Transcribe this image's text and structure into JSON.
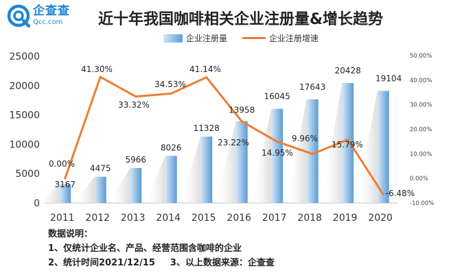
{
  "logo": {
    "cn": "企查查",
    "en": "Qcc.com"
  },
  "title": "近十年我国咖啡相关企业注册量&增长趋势",
  "legend": {
    "bar": "企业注册量",
    "line": "企业注册增速"
  },
  "chart_data": {
    "type": "bar",
    "title": "近十年我国咖啡相关企业注册量&增长趋势",
    "categories": [
      "2011",
      "2012",
      "2013",
      "2014",
      "2015",
      "2016",
      "2017",
      "2018",
      "2019",
      "2020"
    ],
    "series": [
      {
        "name": "企业注册量",
        "type": "bar",
        "axis": "left",
        "values": [
          3167,
          4475,
          5966,
          8026,
          11328,
          13958,
          16045,
          17643,
          20428,
          19104
        ]
      },
      {
        "name": "企业注册增速",
        "type": "line",
        "axis": "right",
        "values": [
          0.0,
          41.3,
          33.32,
          34.53,
          41.14,
          23.22,
          14.95,
          9.96,
          15.79,
          -6.48
        ],
        "labels": [
          "0.00%",
          "41.30%",
          "33.32%",
          "34.53%",
          "41.14%",
          "23.22%",
          "14.95%",
          "9.96%",
          "15.79%",
          "-6.48%"
        ]
      }
    ],
    "left_axis": {
      "range": [
        0,
        25000
      ],
      "ticks": [
        "0",
        "5000",
        "10000",
        "15000",
        "20000",
        "25000"
      ]
    },
    "right_axis": {
      "range": [
        -10,
        50
      ],
      "ticks": [
        "-10.00%",
        "0.00%",
        "10.00%",
        "20.00%",
        "30.00%",
        "40.00%",
        "50.00%"
      ]
    },
    "colors": {
      "bar_light": "#d6e7f7",
      "bar_dark": "#5b9bd5",
      "line": "#ed7d31"
    }
  },
  "notes": {
    "heading": "数据说明：",
    "line1": "1、仅统计企业名、产品、经营范围含咖啡的企业",
    "line2a": "2、统计时间2021/12/15",
    "line2b": "3、以上数据来源：企查查"
  }
}
